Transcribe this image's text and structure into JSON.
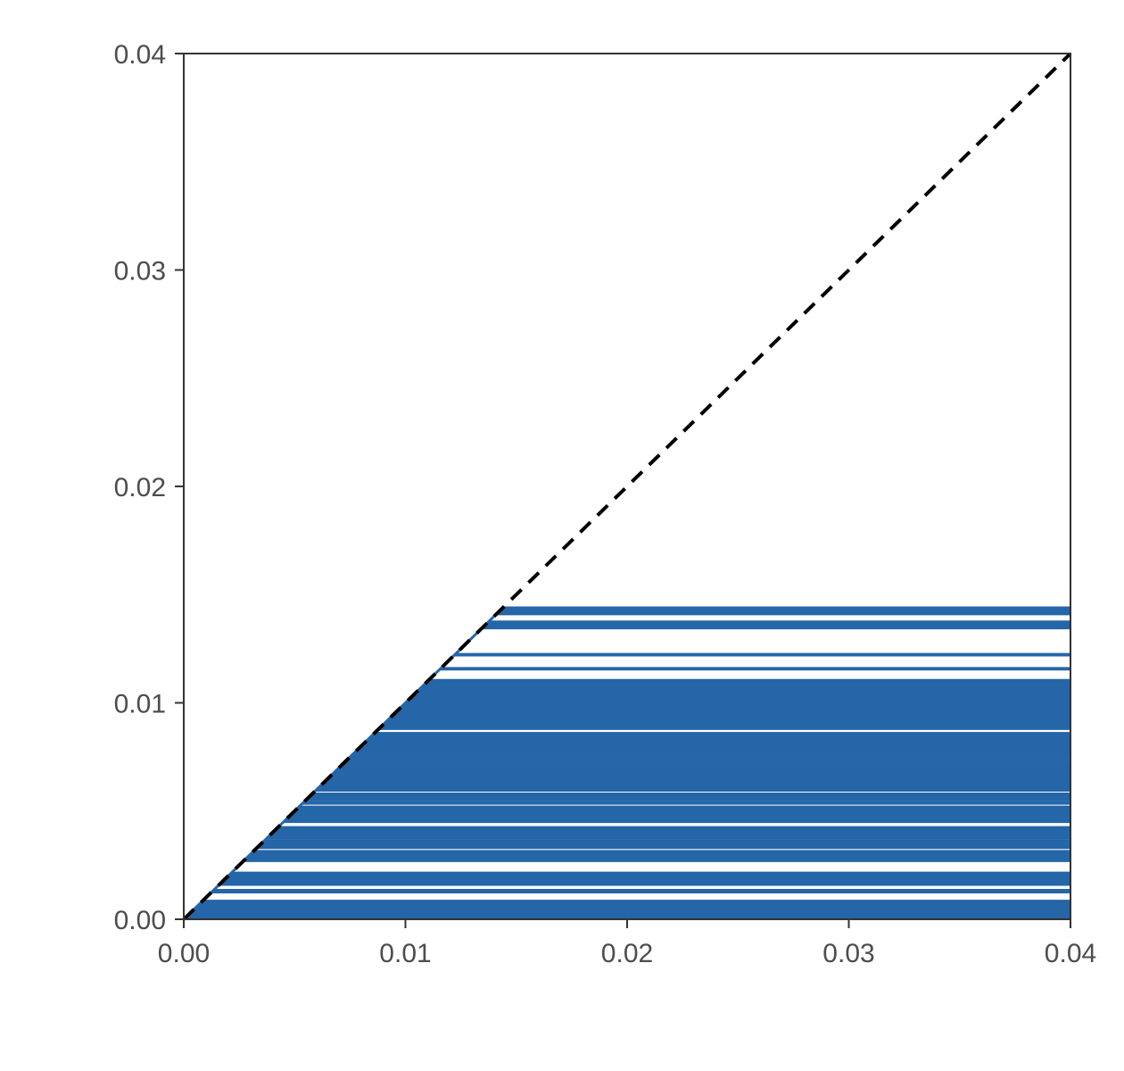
{
  "chart_data": {
    "type": "line",
    "title": "",
    "xlabel": "",
    "ylabel": "",
    "xlim": [
      0,
      0.04
    ],
    "ylim": [
      0,
      0.04
    ],
    "x_ticks": [
      "0.00",
      "0.01",
      "0.02",
      "0.03",
      "0.04"
    ],
    "y_ticks": [
      "0.00",
      "0.01",
      "0.02",
      "0.03",
      "0.04"
    ],
    "reference_line": {
      "style": "dashed",
      "color": "#000000",
      "from": [
        0,
        0
      ],
      "to": [
        0.04,
        0.04
      ]
    },
    "series": [
      {
        "color": "#2466a8",
        "y_max": 0.0144,
        "line_levels": [
          5e-05,
          0.0001,
          0.00015,
          0.0002,
          0.00025,
          0.0003,
          0.00035,
          0.0004,
          0.00045,
          0.0005,
          0.00055,
          0.0006,
          0.00065,
          0.0007,
          0.00075,
          0.0008,
          0.00085,
          0.00125,
          0.0013,
          0.00135,
          0.0016,
          0.00165,
          0.0017,
          0.00175,
          0.0018,
          0.00185,
          0.0019,
          0.00195,
          0.002,
          0.00205,
          0.0021,
          0.00215,
          0.0027,
          0.00275,
          0.0028,
          0.00285,
          0.0029,
          0.00295,
          0.003,
          0.00305,
          0.0031,
          0.00315,
          0.0033,
          0.00335,
          0.00345,
          0.0035,
          0.00355,
          0.0036,
          0.00365,
          0.00375,
          0.0038,
          0.00385,
          0.0039,
          0.00395,
          0.004,
          0.00405,
          0.0041,
          0.00415,
          0.0042,
          0.00425,
          0.0045,
          0.00455,
          0.0046,
          0.00465,
          0.0047,
          0.00475,
          0.0048,
          0.00485,
          0.0049,
          0.00495,
          0.005,
          0.00505,
          0.0051,
          0.00515,
          0.0052,
          0.00535,
          0.0054,
          0.0055,
          0.00555,
          0.0056,
          0.00565,
          0.0057,
          0.00575,
          0.0058,
          0.00595,
          0.006,
          0.00605,
          0.0061,
          0.00615,
          0.0062,
          0.00625,
          0.0063,
          0.00635,
          0.0064,
          0.00645,
          0.0065,
          0.00655,
          0.0066,
          0.00665,
          0.0067,
          0.00675,
          0.0068,
          0.00685,
          0.0069,
          0.00695,
          0.007,
          0.00705,
          0.0071,
          0.00715,
          0.0072,
          0.00725,
          0.0073,
          0.0074,
          0.00745,
          0.0075,
          0.00755,
          0.0076,
          0.00765,
          0.0077,
          0.00775,
          0.0078,
          0.00785,
          0.0079,
          0.00795,
          0.008,
          0.00805,
          0.0081,
          0.00815,
          0.0082,
          0.00825,
          0.0083,
          0.00835,
          0.0084,
          0.00845,
          0.0085,
          0.00855,
          0.0086,
          0.0088,
          0.00885,
          0.0089,
          0.00895,
          0.009,
          0.00905,
          0.0091,
          0.00915,
          0.0092,
          0.00925,
          0.0093,
          0.00935,
          0.0094,
          0.00945,
          0.0095,
          0.00955,
          0.0096,
          0.00965,
          0.0097,
          0.00975,
          0.0098,
          0.00985,
          0.0099,
          0.00995,
          0.01,
          0.01005,
          0.0101,
          0.01015,
          0.0102,
          0.01025,
          0.0103,
          0.01035,
          0.0104,
          0.01045,
          0.0105,
          0.01055,
          0.0106,
          0.01065,
          0.0107,
          0.01075,
          0.0108,
          0.01085,
          0.0109,
          0.01095,
          0.011,
          0.01105,
          0.01155,
          0.0116,
          0.0122,
          0.01225,
          0.01345,
          0.0135,
          0.01355,
          0.0136,
          0.01365,
          0.0137,
          0.01375,
          0.0141,
          0.01415,
          0.0142,
          0.01425,
          0.0143,
          0.01435,
          0.0144
        ]
      }
    ]
  }
}
